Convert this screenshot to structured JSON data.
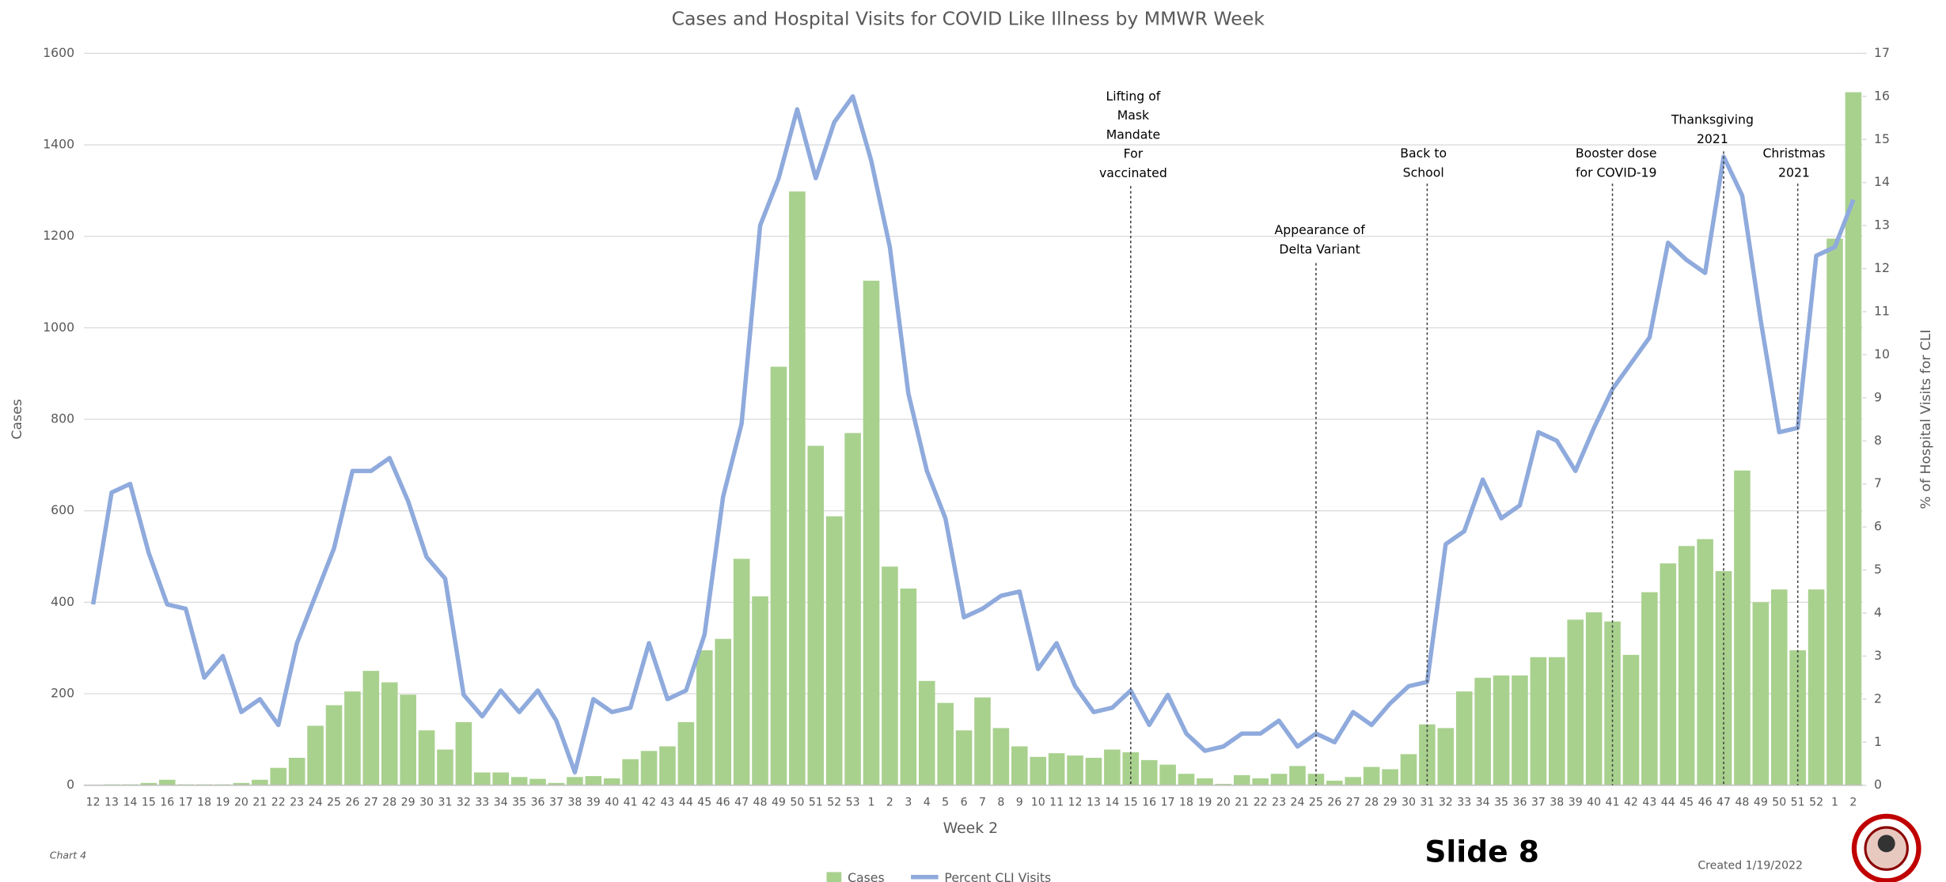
{
  "chart_data": {
    "type": "bar-line",
    "title": "Cases and Hospital Visits for COVID Like Illness by MMWR Week",
    "xlabel": "Week 2",
    "ylabel": "Cases",
    "y2label": "% of Hospital Visits for CLI",
    "categories": [
      "12",
      "13",
      "14",
      "15",
      "16",
      "17",
      "18",
      "19",
      "20",
      "21",
      "22",
      "23",
      "24",
      "25",
      "26",
      "27",
      "28",
      "29",
      "30",
      "31",
      "32",
      "33",
      "34",
      "35",
      "36",
      "37",
      "38",
      "39",
      "40",
      "41",
      "42",
      "43",
      "44",
      "45",
      "46",
      "47",
      "48",
      "49",
      "50",
      "51",
      "52",
      "53",
      "1",
      "2",
      "3",
      "4",
      "5",
      "6",
      "7",
      "8",
      "9",
      "10",
      "11",
      "12",
      "13",
      "14",
      "15",
      "16",
      "17",
      "18",
      "19",
      "20",
      "21",
      "22",
      "23",
      "24",
      "25",
      "26",
      "27",
      "28",
      "29",
      "30",
      "31",
      "32",
      "33",
      "34",
      "35",
      "36",
      "37",
      "38",
      "39",
      "40",
      "41",
      "42",
      "43",
      "44",
      "45",
      "46",
      "47",
      "48",
      "49",
      "50",
      "51",
      "52",
      "1",
      "2"
    ],
    "series": [
      {
        "name": "Cases",
        "type": "bar",
        "color": "#a9d18e",
        "values": [
          0,
          2,
          2,
          5,
          12,
          2,
          2,
          2,
          5,
          12,
          38,
          60,
          130,
          175,
          205,
          250,
          225,
          198,
          120,
          78,
          138,
          28,
          28,
          18,
          14,
          5,
          18,
          20,
          15,
          57,
          75,
          85,
          138,
          295,
          320,
          495,
          413,
          915,
          1298,
          742,
          588,
          770,
          1103,
          478,
          430,
          228,
          180,
          120,
          192,
          125,
          85,
          62,
          70,
          65,
          60,
          78,
          72,
          55,
          45,
          25,
          15,
          3,
          22,
          15,
          25,
          42,
          25,
          10,
          18,
          40,
          35,
          68,
          133,
          125,
          205,
          235,
          240,
          240,
          280,
          280,
          362,
          378,
          358,
          285,
          422,
          485,
          523,
          538,
          468,
          688,
          400,
          428,
          295,
          428,
          1195,
          1515
        ]
      },
      {
        "name": "Percent CLI Visits",
        "type": "line",
        "axis": "y2",
        "color": "#8faadc",
        "values": [
          4.2,
          6.8,
          7.0,
          5.4,
          4.2,
          4.1,
          2.5,
          3.0,
          1.7,
          2.0,
          1.4,
          3.3,
          4.4,
          5.5,
          7.3,
          7.3,
          7.6,
          6.6,
          5.3,
          4.8,
          2.1,
          1.6,
          2.2,
          1.7,
          2.2,
          1.5,
          0.3,
          2.0,
          1.7,
          1.8,
          3.3,
          2.0,
          2.2,
          3.5,
          6.7,
          8.4,
          13.0,
          14.1,
          15.7,
          14.1,
          15.4,
          16.0,
          14.5,
          12.5,
          9.1,
          7.3,
          6.2,
          3.9,
          4.1,
          4.4,
          4.5,
          2.7,
          3.3,
          2.3,
          1.7,
          1.8,
          2.2,
          1.4,
          2.1,
          1.2,
          0.8,
          0.9,
          1.2,
          1.2,
          1.5,
          0.9,
          1.2,
          1.0,
          1.7,
          1.4,
          1.9,
          2.3,
          2.4,
          5.6,
          5.9,
          7.1,
          6.2,
          6.5,
          8.2,
          8.0,
          7.3,
          8.3,
          9.2,
          9.8,
          10.4,
          12.6,
          12.2,
          11.9,
          14.6,
          13.7,
          10.8,
          8.2,
          8.3,
          12.3,
          12.5,
          13.6
        ]
      }
    ],
    "ylim": [
      0,
      1600
    ],
    "yticks": [
      0,
      200,
      400,
      600,
      800,
      1000,
      1200,
      1400,
      1600
    ],
    "y2lim": [
      0,
      17
    ],
    "y2ticks": [
      0,
      1,
      2,
      3,
      4,
      5,
      6,
      7,
      8,
      9,
      10,
      11,
      12,
      13,
      14,
      15,
      16,
      17
    ],
    "grid": true,
    "legend": "bottom",
    "annotations": [
      {
        "text": [
          "Lifting of",
          "Mask",
          "Mandate",
          "For",
          "vaccinated"
        ]
      },
      {
        "text": [
          "Appearance of",
          "Delta Variant"
        ]
      },
      {
        "text": [
          "Back to",
          "School"
        ]
      },
      {
        "text": [
          "Booster dose",
          "for COVID-19"
        ]
      },
      {
        "text": [
          "Thanksgiving",
          "2021"
        ]
      },
      {
        "text": [
          "Christmas",
          "2021"
        ]
      }
    ]
  },
  "footer": {
    "chart_label": "Chart 4",
    "slide": "Slide 8",
    "created": "Created 1/19/2022"
  }
}
